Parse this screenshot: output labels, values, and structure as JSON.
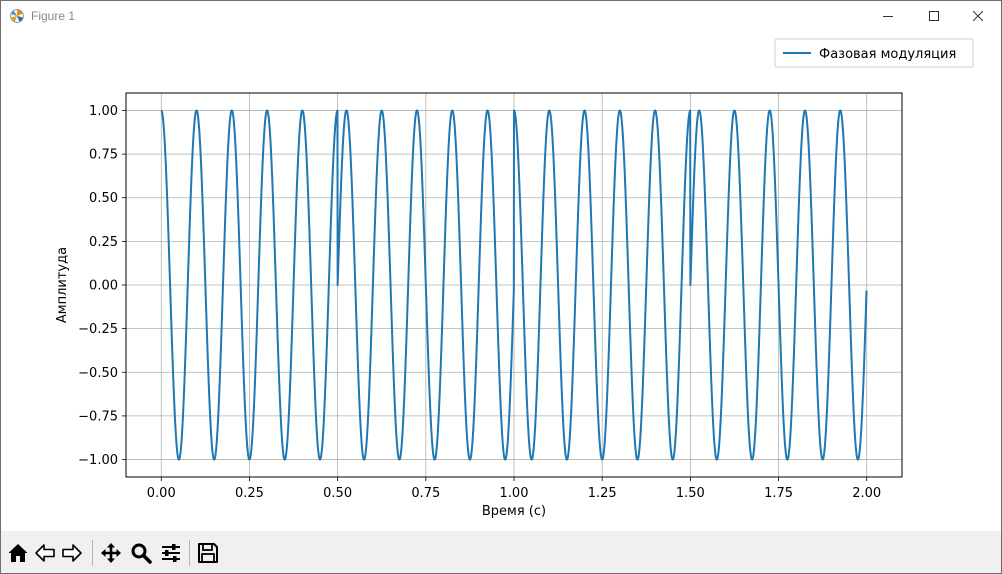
{
  "window": {
    "title": "Figure 1",
    "icons": {
      "app": "matplotlib-logo-icon",
      "minimize": "minimize-icon",
      "maximize": "maximize-icon",
      "close": "close-icon"
    }
  },
  "toolbar": {
    "buttons": [
      {
        "name": "home-button",
        "icon": "home-icon"
      },
      {
        "name": "back-button",
        "icon": "back-arrow-icon"
      },
      {
        "name": "forward-button",
        "icon": "forward-arrow-icon"
      },
      {
        "name": "pan-button",
        "icon": "move-icon"
      },
      {
        "name": "zoom-button",
        "icon": "magnifier-icon"
      },
      {
        "name": "configure-subplots-button",
        "icon": "sliders-icon"
      },
      {
        "name": "save-button",
        "icon": "floppy-disk-icon"
      }
    ]
  },
  "chart_data": {
    "type": "line",
    "title": "",
    "xlabel": "Время (с)",
    "ylabel": "Амплитуда",
    "xlim": [
      -0.1,
      2.1
    ],
    "ylim": [
      -1.1,
      1.1
    ],
    "xticks": [
      "0.00",
      "0.25",
      "0.50",
      "0.75",
      "1.00",
      "1.25",
      "1.50",
      "1.75",
      "2.00"
    ],
    "yticks": [
      "−1.00",
      "−0.75",
      "−0.50",
      "−0.25",
      "0.00",
      "0.25",
      "0.50",
      "0.75",
      "1.00"
    ],
    "xtick_values": [
      0,
      0.25,
      0.5,
      0.75,
      1.0,
      1.25,
      1.5,
      1.75,
      2.0
    ],
    "ytick_values": [
      -1,
      -0.75,
      -0.5,
      -0.25,
      0,
      0.25,
      0.5,
      0.75,
      1
    ],
    "grid": true,
    "legend": "top-right",
    "series": [
      {
        "name": "Фазовая модуляция",
        "color": "#1f77b4",
        "frequency_hz": 10,
        "x_range": [
          0,
          2
        ],
        "segments": [
          {
            "from": 0.0,
            "to": 0.5,
            "y_start": 1.0,
            "y_end_approx": 1.0
          },
          {
            "from": 0.5,
            "to": 1.0,
            "y_start": 0.0,
            "y_end_approx": 0.0
          },
          {
            "from": 1.0,
            "to": 1.5,
            "y_start": 1.0,
            "y_end_approx": 1.0
          },
          {
            "from": 1.5,
            "to": 2.0,
            "y_start": 0.0,
            "y_end_approx": -0.06
          }
        ]
      }
    ]
  }
}
